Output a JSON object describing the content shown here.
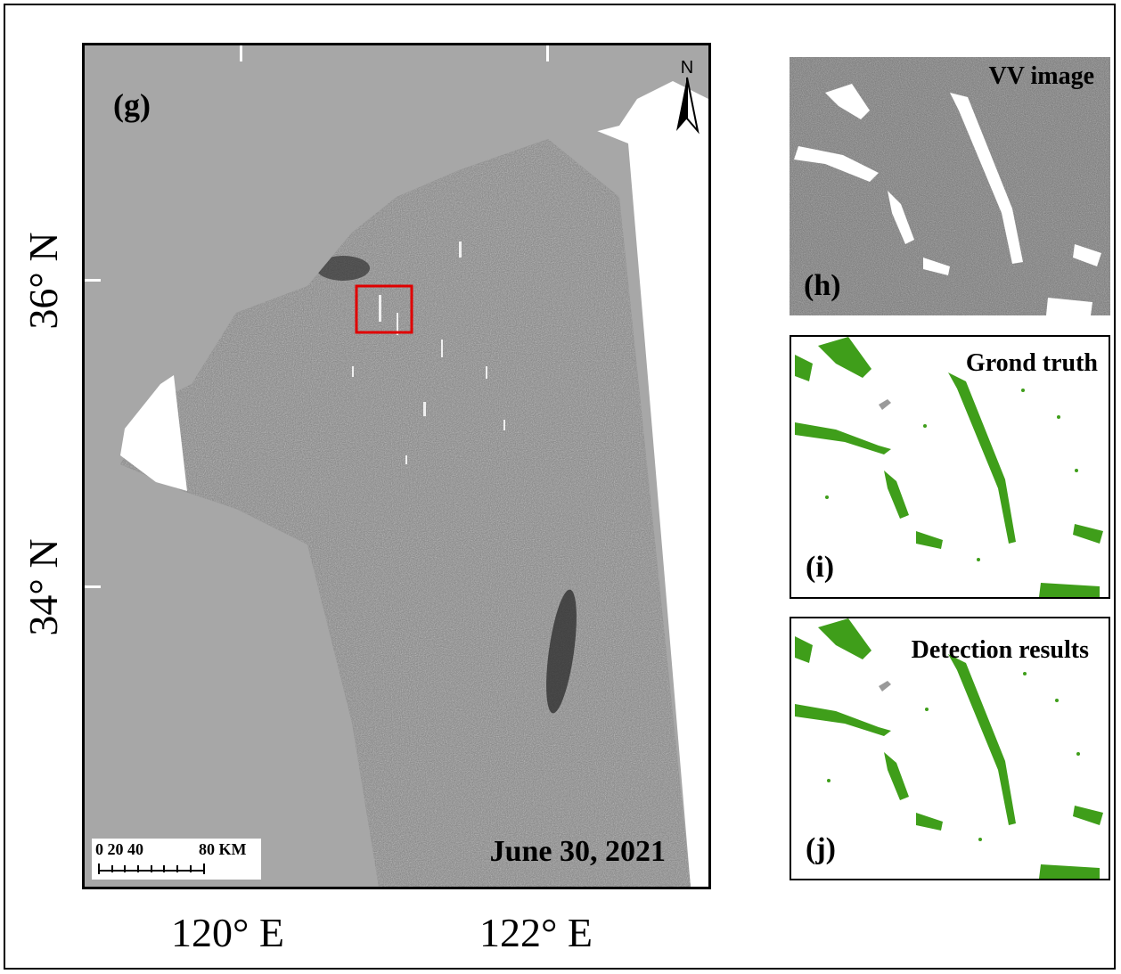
{
  "panels": {
    "g": {
      "label": "(g)",
      "date": "June 30, 2021"
    },
    "h": {
      "label": "(h)",
      "title": "VV image"
    },
    "i": {
      "label": "(i)",
      "title": "Grond truth"
    },
    "j": {
      "label": "(j)",
      "title": "Detection results"
    }
  },
  "north_arrow": {
    "letter": "N"
  },
  "scale_bar": {
    "text_left": "0  20 40",
    "text_right": "80 KM"
  },
  "axes": {
    "latitude_labels": [
      "36° N",
      "34° N"
    ],
    "longitude_labels": [
      "120° E",
      "122° E"
    ]
  },
  "colors": {
    "land": "#a7a7a7",
    "no_data": "#ffffff",
    "sar_sea": "#7a7a7a",
    "detected_algae": "#3f9e1a",
    "study_box": "#e00000"
  }
}
